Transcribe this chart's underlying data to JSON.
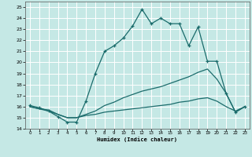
{
  "xlabel": "Humidex (Indice chaleur)",
  "bg_color": "#c5e8e5",
  "line_color": "#1a6b6b",
  "grid_color": "#ffffff",
  "xlim": [
    -0.5,
    23.5
  ],
  "ylim": [
    14.0,
    25.5
  ],
  "xticks": [
    0,
    1,
    2,
    3,
    4,
    5,
    6,
    7,
    8,
    9,
    10,
    11,
    12,
    13,
    14,
    15,
    16,
    17,
    18,
    19,
    20,
    21,
    22,
    23
  ],
  "yticks": [
    14,
    15,
    16,
    17,
    18,
    19,
    20,
    21,
    22,
    23,
    24,
    25
  ],
  "line1_x": [
    0,
    1,
    2,
    3,
    4,
    5,
    6,
    7,
    8,
    9,
    10,
    11,
    12,
    13,
    14,
    15,
    16,
    17,
    18,
    19,
    20,
    21,
    22,
    23
  ],
  "line1_y": [
    16.1,
    15.9,
    15.6,
    15.1,
    14.6,
    14.6,
    16.5,
    19.0,
    21.0,
    21.5,
    22.2,
    23.3,
    24.8,
    23.5,
    24.0,
    23.5,
    23.5,
    21.5,
    23.2,
    20.1,
    20.1,
    17.2,
    15.5,
    16.0
  ],
  "line2_x": [
    0,
    1,
    2,
    3,
    4,
    5,
    6,
    7,
    8,
    9,
    10,
    11,
    12,
    13,
    14,
    15,
    16,
    17,
    18,
    19,
    20,
    21,
    22,
    23
  ],
  "line2_y": [
    16.0,
    15.8,
    15.7,
    15.3,
    15.0,
    15.0,
    15.3,
    15.6,
    16.1,
    16.4,
    16.8,
    17.1,
    17.4,
    17.6,
    17.8,
    18.1,
    18.4,
    18.7,
    19.1,
    19.4,
    18.5,
    17.2,
    15.5,
    16.0
  ],
  "line3_x": [
    0,
    1,
    2,
    3,
    4,
    5,
    6,
    7,
    8,
    9,
    10,
    11,
    12,
    13,
    14,
    15,
    16,
    17,
    18,
    19,
    20,
    21,
    22,
    23
  ],
  "line3_y": [
    16.0,
    15.8,
    15.6,
    15.3,
    15.0,
    15.0,
    15.2,
    15.3,
    15.5,
    15.6,
    15.7,
    15.8,
    15.9,
    16.0,
    16.1,
    16.2,
    16.4,
    16.5,
    16.7,
    16.8,
    16.5,
    16.0,
    15.6,
    16.0
  ]
}
